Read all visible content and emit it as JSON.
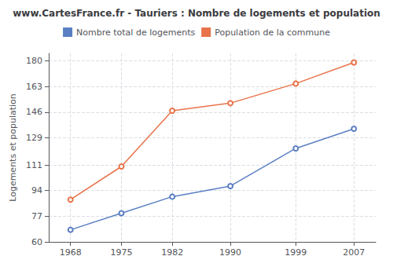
{
  "chart_data": {
    "type": "line",
    "title": "www.CartesFrance.fr - Tauriers : Nombre de logements et population",
    "ylabel": "Logements et population",
    "x": [
      1968,
      1975,
      1982,
      1990,
      1999,
      2007
    ],
    "series": [
      {
        "name": "Nombre total de logements",
        "color": "#5b7fc4",
        "values": [
          68,
          79,
          90,
          97,
          122,
          135
        ]
      },
      {
        "name": "Population de la commune",
        "color": "#e8734a",
        "values": [
          88,
          110,
          147,
          152,
          165,
          179
        ]
      }
    ],
    "xlim": [
      1965,
      2010
    ],
    "xticks": [
      1968,
      1975,
      1982,
      1990,
      1999,
      2007
    ],
    "ylim": [
      60,
      185
    ],
    "yticks": [
      60,
      77,
      94,
      111,
      129,
      146,
      163,
      180
    ],
    "grid": true,
    "legend": "top",
    "marker": "circle"
  }
}
